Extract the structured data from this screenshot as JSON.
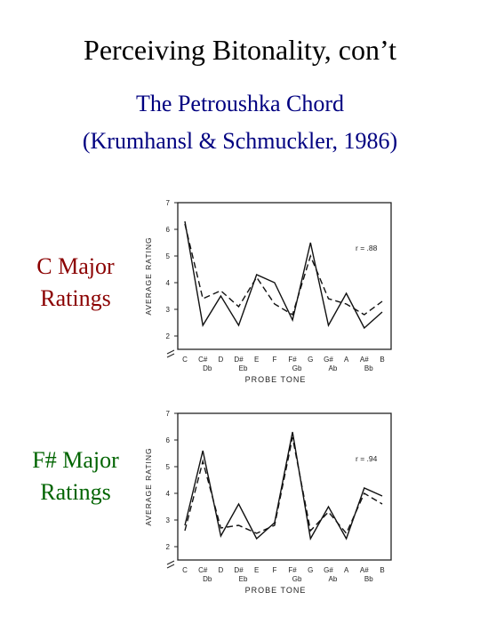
{
  "slide": {
    "title": "Perceiving Bitonality, con’t",
    "subtitle_line1": "The Petroushka Chord",
    "subtitle_line2": "(Krumhansl & Schmuckler, 1986)"
  },
  "labels": {
    "c_major": {
      "line1": "C Major",
      "line2": "Ratings",
      "color": "#8b0000"
    },
    "fsharp_major": {
      "line1": "F# Major",
      "line2": "Ratings",
      "color": "#006400"
    }
  },
  "chart_data": [
    {
      "type": "line",
      "ylabel": "AVERAGE RATING",
      "xlabel": "PROBE TONE",
      "ylim": [
        1.5,
        7
      ],
      "yticks": [
        2,
        3,
        4,
        5,
        6,
        7
      ],
      "categories": [
        "C",
        "C#",
        "D",
        "D#",
        "E",
        "F",
        "F#",
        "G",
        "G#",
        "A",
        "A#",
        "B"
      ],
      "enharmonics": [
        "",
        "Db",
        "",
        "Eb",
        "",
        "",
        "Gb",
        "",
        "Ab",
        "",
        "Bb",
        ""
      ],
      "annotation": "r = .88",
      "series": [
        {
          "style": "solid",
          "values": [
            6.3,
            2.4,
            3.5,
            2.4,
            4.3,
            4.0,
            2.6,
            5.5,
            2.4,
            3.6,
            2.3,
            2.9
          ]
        },
        {
          "style": "dashed",
          "values": [
            6.2,
            3.4,
            3.7,
            3.1,
            4.2,
            3.2,
            2.8,
            5.0,
            3.4,
            3.2,
            2.8,
            3.3
          ]
        }
      ]
    },
    {
      "type": "line",
      "ylabel": "AVERAGE RATING",
      "xlabel": "PROBE TONE",
      "ylim": [
        1.5,
        7
      ],
      "yticks": [
        2,
        3,
        4,
        5,
        6,
        7
      ],
      "categories": [
        "C",
        "C#",
        "D",
        "D#",
        "E",
        "F",
        "F#",
        "G",
        "G#",
        "A",
        "A#",
        "B"
      ],
      "enharmonics": [
        "",
        "Db",
        "",
        "Eb",
        "",
        "",
        "Gb",
        "",
        "Ab",
        "",
        "Bb",
        ""
      ],
      "annotation": "r = .94",
      "series": [
        {
          "style": "solid",
          "values": [
            2.8,
            5.6,
            2.4,
            3.6,
            2.3,
            2.9,
            6.3,
            2.3,
            3.5,
            2.3,
            4.2,
            3.9
          ]
        },
        {
          "style": "dashed",
          "values": [
            2.6,
            5.2,
            2.7,
            2.8,
            2.5,
            2.8,
            6.1,
            2.6,
            3.3,
            2.5,
            4.0,
            3.6
          ]
        }
      ]
    }
  ]
}
